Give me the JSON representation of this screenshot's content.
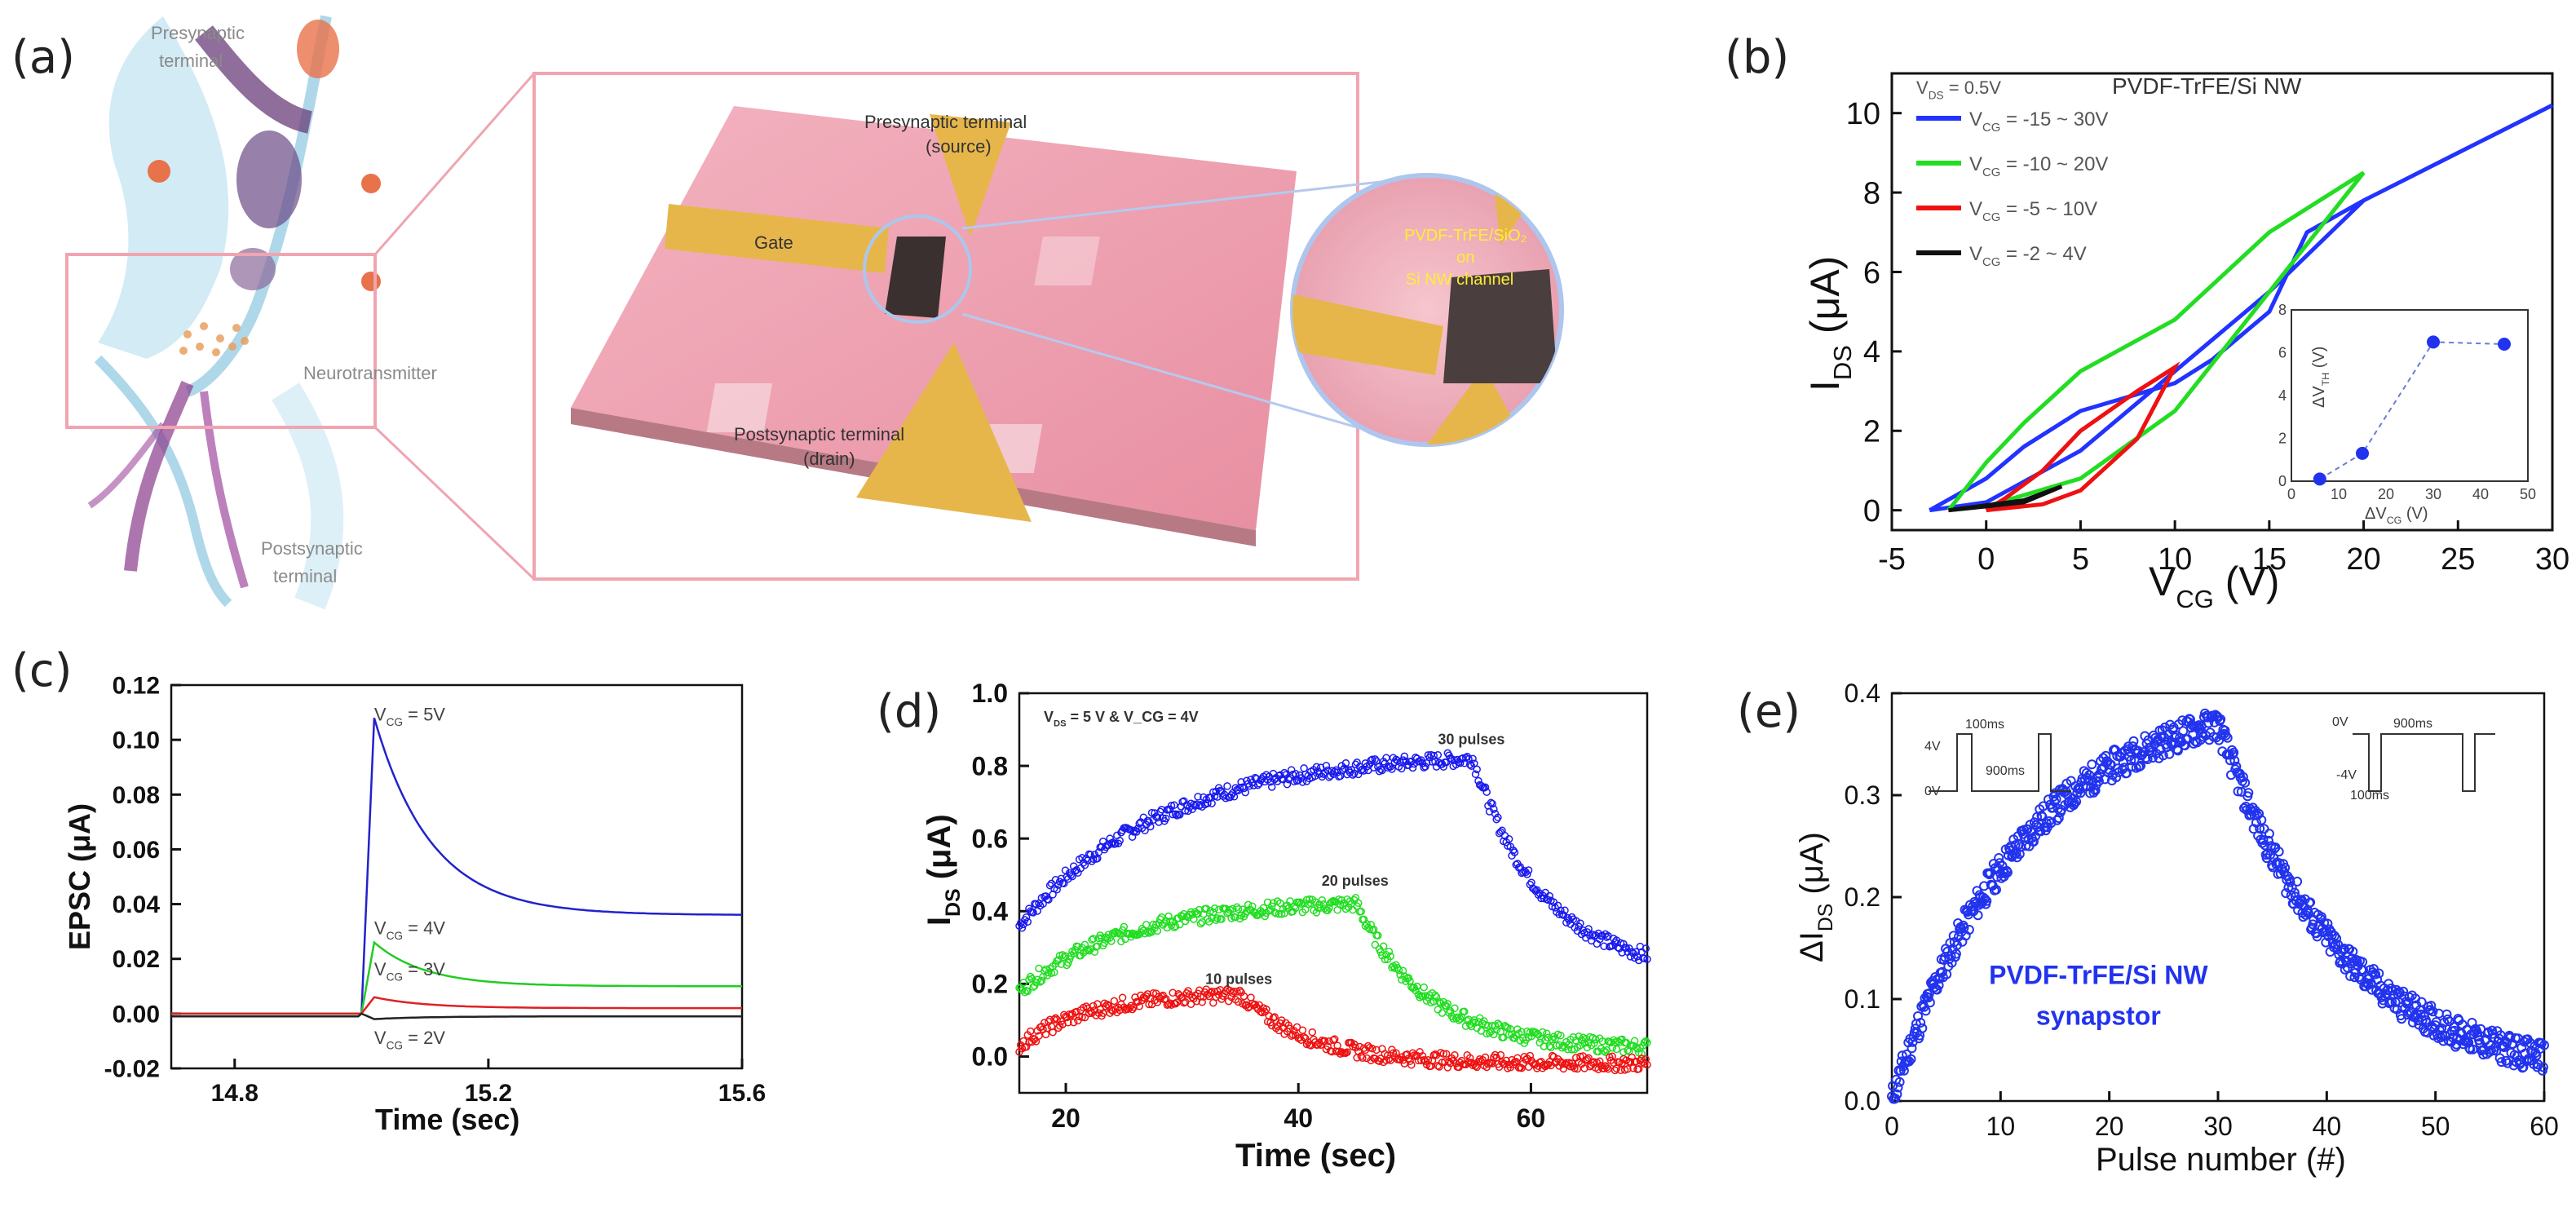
{
  "panels": {
    "a": "(a)",
    "b": "(b)",
    "c": "(c)",
    "d": "(d)",
    "e": "(e)"
  },
  "illustration": {
    "presynaptic_terminal": [
      "Presynaptic",
      "terminal"
    ],
    "neurotransmitter": "Neurotransmitter",
    "postsynaptic_terminal": [
      "Postsynaptic",
      "terminal"
    ],
    "device_presynaptic": [
      "Presynaptic terminal",
      "(source)"
    ],
    "gate": "Gate",
    "device_postsynaptic": [
      "Postsynaptic terminal",
      "(drain)"
    ],
    "zoom_line1": "PVDF-TrFE/SiO₂",
    "zoom_line2": "on",
    "zoom_line3": "Si NW channel"
  },
  "chart_data": [
    {
      "id": "b",
      "type": "line",
      "title": "PVDF-TrFE/Si NW",
      "condition": "V_DS = 0.5V",
      "xlabel": "V_CG (V)",
      "ylabel": "I_DS (μA)",
      "xlim": [
        -5,
        30
      ],
      "ylim": [
        -0.5,
        11
      ],
      "xticks": [
        -5,
        0,
        5,
        10,
        15,
        20,
        25,
        30
      ],
      "yticks": [
        0,
        2,
        4,
        6,
        8,
        10
      ],
      "series": [
        {
          "name": "V_CG = -15 ~ 30V",
          "color": "#2233ff",
          "forward": [
            [
              -3,
              0
            ],
            [
              0,
              0.2
            ],
            [
              5,
              1.5
            ],
            [
              10,
              3.5
            ],
            [
              15,
              5.5
            ],
            [
              20,
              7.8
            ],
            [
              25,
              9
            ],
            [
              30,
              10.2
            ]
          ],
          "reverse": [
            [
              30,
              10.2
            ],
            [
              25,
              9
            ],
            [
              20,
              7.8
            ],
            [
              17,
              7
            ],
            [
              15,
              5
            ],
            [
              12,
              3.8
            ],
            [
              10,
              3.2
            ],
            [
              5,
              2.5
            ],
            [
              2,
              1.6
            ],
            [
              0,
              0.8
            ],
            [
              -3,
              0
            ]
          ]
        },
        {
          "name": "V_CG = -10 ~ 20V",
          "color": "#22dd22",
          "forward": [
            [
              -2,
              0
            ],
            [
              0,
              0.1
            ],
            [
              5,
              0.8
            ],
            [
              10,
              2.5
            ],
            [
              15,
              5.5
            ],
            [
              20,
              8.5
            ]
          ],
          "reverse": [
            [
              20,
              8.5
            ],
            [
              15,
              7
            ],
            [
              10,
              4.8
            ],
            [
              5,
              3.5
            ],
            [
              2,
              2.2
            ],
            [
              0,
              1.2
            ],
            [
              -2,
              0
            ]
          ]
        },
        {
          "name": "V_CG = -5 ~ 10V",
          "color": "#ee1111",
          "forward": [
            [
              0,
              0
            ],
            [
              3,
              0.15
            ],
            [
              5,
              0.5
            ],
            [
              8,
              1.8
            ],
            [
              10,
              3.6
            ]
          ],
          "reverse": [
            [
              10,
              3.6
            ],
            [
              8,
              3
            ],
            [
              5,
              2
            ],
            [
              3,
              1
            ],
            [
              1,
              0.3
            ],
            [
              0,
              0
            ]
          ]
        },
        {
          "name": "V_CG = -2 ~ 4V",
          "color": "#111111",
          "forward": [
            [
              -2,
              0
            ],
            [
              2,
              0.2
            ],
            [
              4,
              0.6
            ]
          ],
          "reverse": [
            [
              4,
              0.6
            ],
            [
              2,
              0.25
            ],
            [
              -2,
              0
            ]
          ]
        }
      ],
      "inset": {
        "xlabel": "ΔV_CG (V)",
        "ylabel": "ΔV_TH (V)",
        "xlim": [
          0,
          50
        ],
        "ylim": [
          0,
          8
        ],
        "xticks": [
          0,
          10,
          20,
          30,
          40,
          50
        ],
        "yticks": [
          0,
          2,
          4,
          6,
          8
        ],
        "x": [
          6,
          15,
          30,
          45
        ],
        "y": [
          0.1,
          1.3,
          6.5,
          6.4
        ]
      }
    },
    {
      "id": "c",
      "type": "line",
      "xlabel": "Time (sec)",
      "ylabel": "EPSC (μA)",
      "xlim": [
        14.7,
        15.6
      ],
      "ylim": [
        -0.02,
        0.12
      ],
      "xticks": [
        14.8,
        15.2,
        15.6
      ],
      "yticks": [
        -0.02,
        0.0,
        0.02,
        0.04,
        0.06,
        0.08,
        0.1,
        0.12
      ],
      "series": [
        {
          "name": "V_CG = 5V",
          "color": "#2222cc",
          "peak": 0.108,
          "settle": 0.036,
          "tau": 0.09
        },
        {
          "name": "V_CG = 4V",
          "color": "#22cc22",
          "peak": 0.026,
          "settle": 0.01,
          "tau": 0.08
        },
        {
          "name": "V_CG = 3V",
          "color": "#dd2222",
          "peak": 0.006,
          "settle": 0.002,
          "tau": 0.08
        },
        {
          "name": "V_CG = 2V",
          "color": "#222222",
          "peak": -0.002,
          "settle": -0.001,
          "tau": 0.08
        }
      ],
      "pulse_time": 15.0
    },
    {
      "id": "d",
      "type": "scatter",
      "condition": "V_DS = 5 V & V_CG = 4V",
      "xlabel": "Time (sec)",
      "ylabel": "I_DS (μA)",
      "xlim": [
        16,
        70
      ],
      "ylim": [
        -0.1,
        1.0
      ],
      "xticks": [
        20,
        40,
        60
      ],
      "yticks": [
        0.0,
        0.2,
        0.4,
        0.6,
        0.8,
        1.0
      ],
      "series": [
        {
          "name": "30 pulses",
          "color": "#1a1aee",
          "start": 0.36,
          "end_rise": 55,
          "peak": 0.82,
          "floor": 0.23,
          "decay_end": 70
        },
        {
          "name": "20 pulses",
          "color": "#22dd22",
          "start": 0.18,
          "end_rise": 45,
          "peak": 0.42,
          "floor": 0.02,
          "decay_end": 70
        },
        {
          "name": "10 pulses",
          "color": "#ee1111",
          "start": 0.03,
          "end_rise": 35,
          "peak": 0.17,
          "floor": -0.02,
          "decay_end": 70
        }
      ]
    },
    {
      "id": "e",
      "type": "scatter",
      "xlabel": "Pulse number (#)",
      "ylabel": "ΔI_DS (μA)",
      "xlim": [
        0,
        60
      ],
      "ylim": [
        0.0,
        0.4
      ],
      "xticks": [
        0,
        10,
        20,
        30,
        40,
        50,
        60
      ],
      "yticks": [
        0.0,
        0.1,
        0.2,
        0.3,
        0.4
      ],
      "annotation": [
        "PVDF-TrFE/Si NW",
        "synapstor"
      ],
      "series": [
        {
          "name": "ΔI_DS",
          "color": "#2233ee",
          "rise_end": 30,
          "peak": 0.37,
          "end": 0.02
        }
      ],
      "inset_left": {
        "labels": [
          "4V",
          "0V",
          "100ms",
          "900ms"
        ]
      },
      "inset_right": {
        "labels": [
          "0V",
          "-4V",
          "900ms",
          "100ms"
        ]
      }
    }
  ],
  "colors": {
    "blue": "#2233ff",
    "green": "#22dd22",
    "red": "#ee1111",
    "black": "#111111"
  }
}
